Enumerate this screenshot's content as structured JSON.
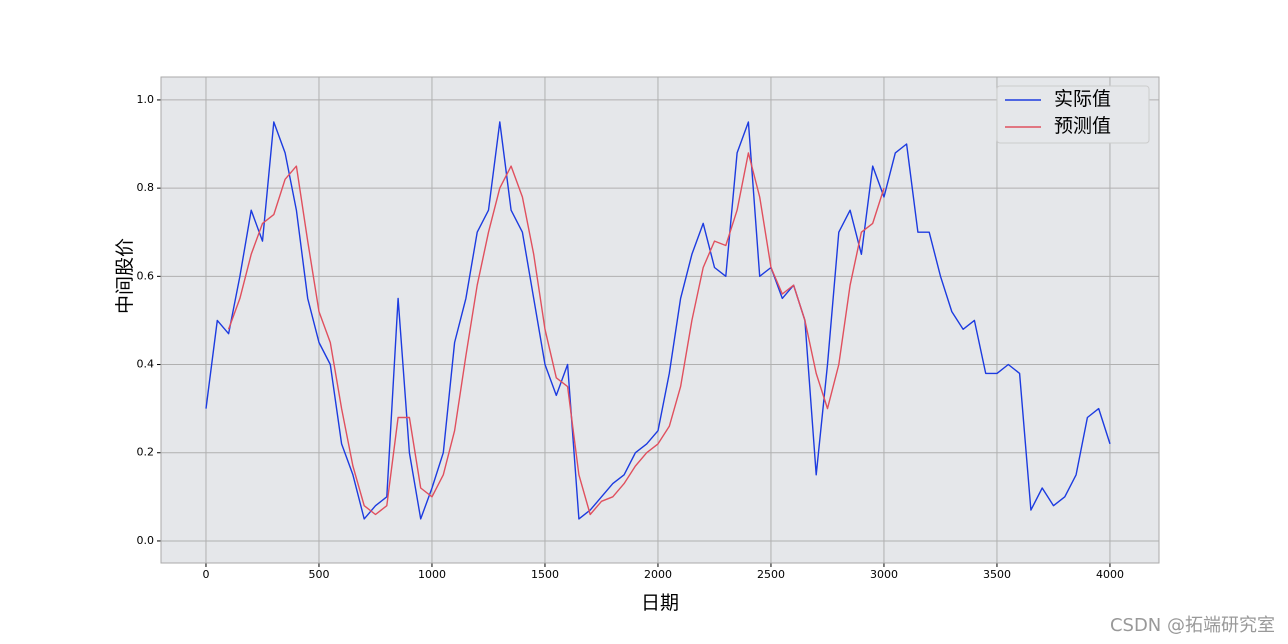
{
  "chart_data": {
    "type": "line",
    "xlabel": "日期",
    "ylabel": "中间股价",
    "watermark": "CSDN @拓端研究室",
    "x": [
      0,
      50,
      100,
      150,
      200,
      250,
      300,
      350,
      400,
      450,
      500,
      550,
      600,
      650,
      700,
      750,
      800,
      850,
      900,
      950,
      1000,
      1050,
      1100,
      1150,
      1200,
      1250,
      1300,
      1350,
      1400,
      1450,
      1500,
      1550,
      1600,
      1650,
      1700,
      1750,
      1800,
      1850,
      1900,
      1950,
      2000,
      2050,
      2100,
      2150,
      2200,
      2250,
      2300,
      2350,
      2400,
      2450,
      2500,
      2550,
      2600,
      2650,
      2700,
      2750,
      2800,
      2850,
      2900,
      2950,
      3000,
      3050,
      3100,
      3150,
      3200,
      3250,
      3300,
      3350,
      3400,
      3450,
      3500,
      3550,
      3600,
      3650,
      3700,
      3750,
      3800,
      3850,
      3900,
      3950,
      4000
    ],
    "series": [
      {
        "name": "实际值",
        "color": "#1c3be0",
        "values": [
          0.3,
          0.5,
          0.47,
          0.6,
          0.75,
          0.68,
          0.95,
          0.88,
          0.75,
          0.55,
          0.45,
          0.4,
          0.22,
          0.15,
          0.05,
          0.08,
          0.1,
          0.55,
          0.2,
          0.05,
          0.12,
          0.2,
          0.45,
          0.55,
          0.7,
          0.75,
          0.95,
          0.75,
          0.7,
          0.55,
          0.4,
          0.33,
          0.4,
          0.05,
          0.07,
          0.1,
          0.13,
          0.15,
          0.2,
          0.22,
          0.25,
          0.38,
          0.55,
          0.65,
          0.72,
          0.62,
          0.6,
          0.88,
          0.95,
          0.6,
          0.62,
          0.55,
          0.58,
          0.5,
          0.15,
          0.4,
          0.7,
          0.75,
          0.65,
          0.85,
          0.78,
          0.88,
          0.9,
          0.7,
          0.7,
          0.6,
          0.52,
          0.48,
          0.5,
          0.38,
          0.38,
          0.4,
          0.38,
          0.07,
          0.12,
          0.08,
          0.1,
          0.15,
          0.28,
          0.3,
          0.22
        ]
      },
      {
        "name": "预测值",
        "color": "#e0505e",
        "values": [
          null,
          null,
          0.48,
          0.55,
          0.65,
          0.72,
          0.74,
          0.82,
          0.85,
          0.68,
          0.52,
          0.45,
          0.3,
          0.17,
          0.08,
          0.06,
          0.08,
          0.28,
          0.28,
          0.12,
          0.1,
          0.15,
          0.25,
          0.42,
          0.58,
          0.7,
          0.8,
          0.85,
          0.78,
          0.65,
          0.48,
          0.37,
          0.35,
          0.15,
          0.06,
          0.09,
          0.1,
          0.13,
          0.17,
          0.2,
          0.22,
          0.26,
          0.35,
          0.5,
          0.62,
          0.68,
          0.67,
          0.75,
          0.88,
          0.78,
          0.62,
          0.56,
          0.58,
          0.5,
          0.38,
          0.3,
          0.4,
          0.58,
          0.7,
          0.72,
          0.8,
          null,
          null,
          null,
          null,
          null,
          null,
          null,
          null,
          null,
          null,
          null,
          null,
          null,
          null,
          null,
          null,
          null,
          null,
          null,
          null
        ]
      }
    ],
    "xlim": [
      -199,
      4217
    ],
    "ylim": [
      -0.05,
      1.052
    ],
    "xticks": [
      0,
      500,
      1000,
      1500,
      2000,
      2500,
      3000,
      3500,
      4000
    ],
    "yticks": [
      {
        "value": 0,
        "label": "0.0"
      },
      0.2,
      0.4,
      0.6,
      0.8,
      {
        "value": 1,
        "label": "1.0"
      }
    ],
    "grid": true,
    "legend": "upper right",
    "background": "#e5e7ea"
  }
}
